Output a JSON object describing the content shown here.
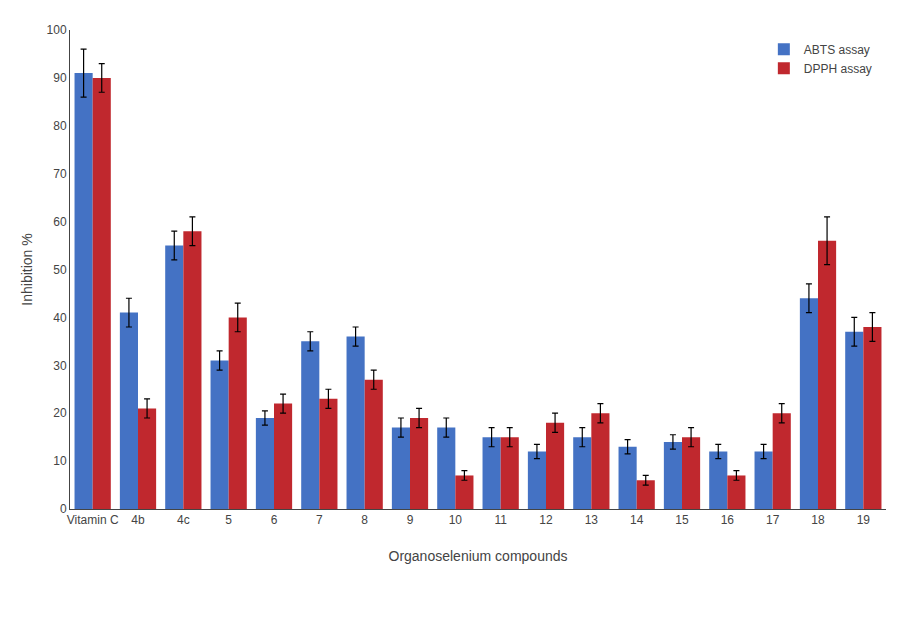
{
  "chart_data": {
    "type": "bar",
    "xlabel": "Organoselenium compounds",
    "ylabel": "Inhibition %",
    "categories": [
      "Vitamin C",
      "4b",
      "4c",
      "5",
      "6",
      "7",
      "8",
      "9",
      "10",
      "11",
      "12",
      "13",
      "14",
      "15",
      "16",
      "17",
      "18",
      "19"
    ],
    "series": [
      {
        "name": "ABTS assay",
        "color": "#4472C4",
        "values": [
          91,
          41,
          55,
          31,
          19,
          35,
          36,
          17,
          17,
          15,
          12,
          15,
          13,
          14,
          12,
          12,
          44,
          37
        ],
        "errors": [
          5,
          3,
          3,
          2,
          1.5,
          2,
          2,
          2,
          2,
          2,
          1.5,
          2,
          1.5,
          1.5,
          1.5,
          1.5,
          3,
          3
        ]
      },
      {
        "name": "DPPH assay",
        "color": "#C0282E",
        "values": [
          90,
          21,
          58,
          40,
          22,
          23,
          27,
          19,
          7,
          15,
          18,
          20,
          6,
          15,
          7,
          20,
          56,
          38
        ],
        "errors": [
          3,
          2,
          3,
          3,
          2,
          2,
          2,
          2,
          1,
          2,
          2,
          2,
          1,
          2,
          1,
          2,
          5,
          3
        ]
      }
    ],
    "ylim": [
      0,
      100
    ],
    "yticks": [
      0,
      10,
      20,
      30,
      40,
      50,
      60,
      70,
      80,
      90,
      100
    ],
    "legend": "upper right",
    "grid": false
  }
}
